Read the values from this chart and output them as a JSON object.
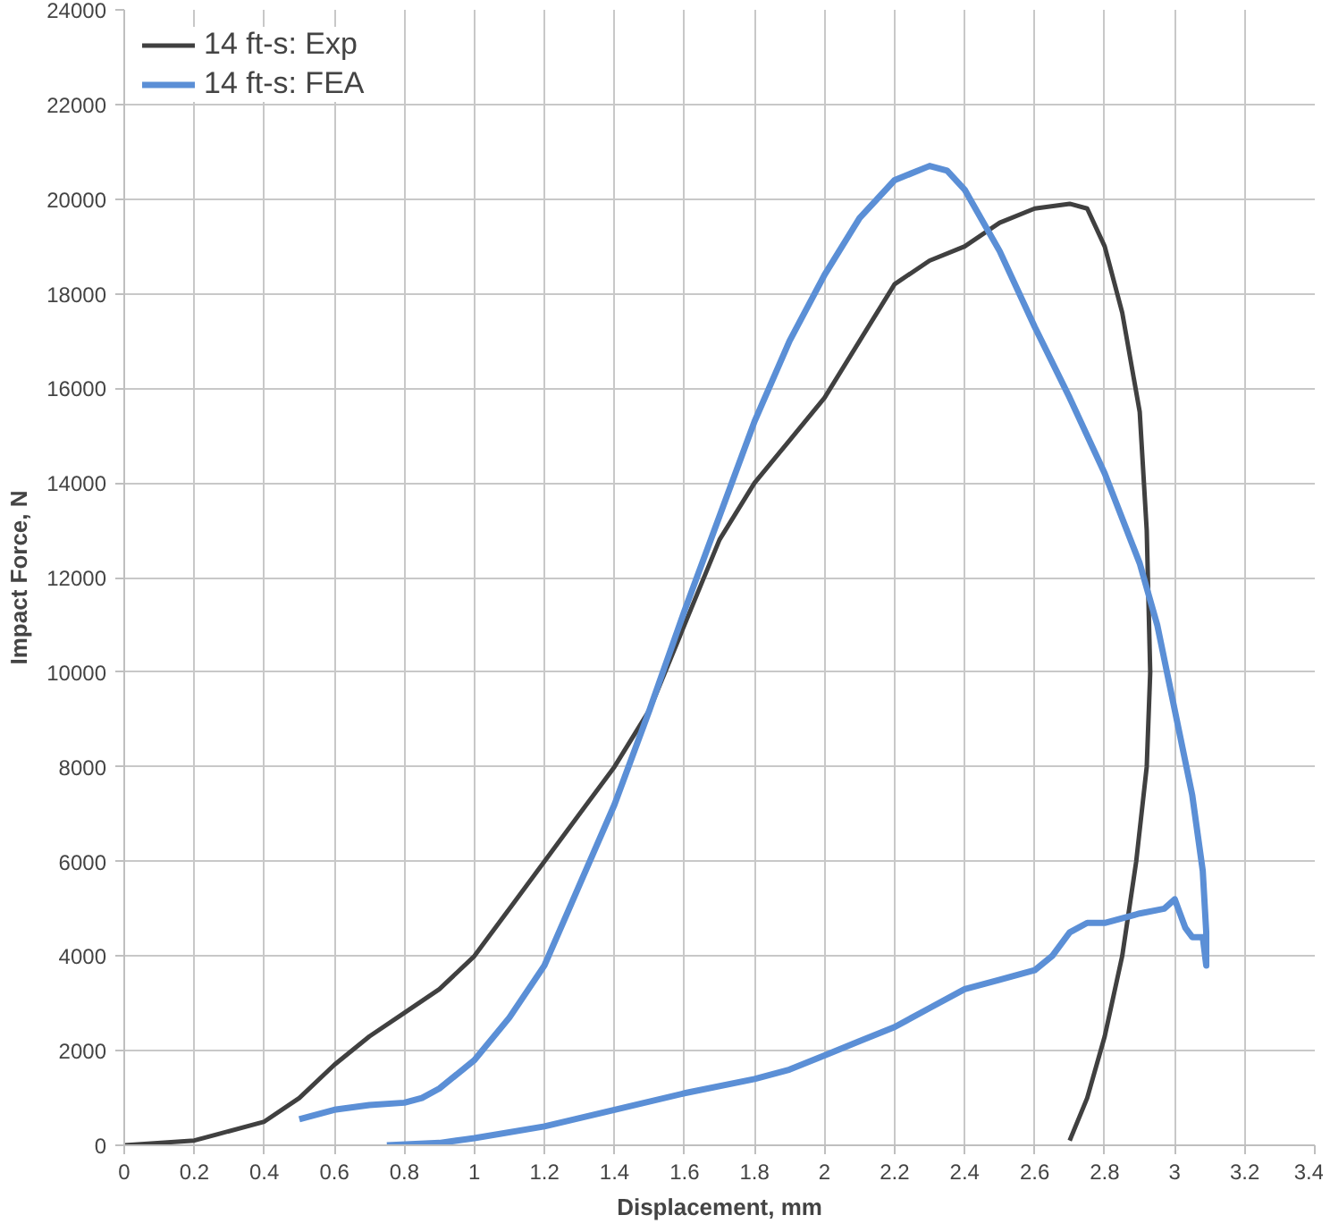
{
  "chart_data": {
    "type": "line",
    "xlabel": "Displacement, mm",
    "ylabel": "Impact Force, N",
    "xlim": [
      0,
      3.4
    ],
    "xticks": [
      0,
      0.2,
      0.4,
      0.6,
      0.8,
      1,
      1.2,
      1.4,
      1.6,
      1.8,
      2,
      2.2,
      2.4,
      2.6,
      2.8,
      3,
      3.2,
      3.4
    ],
    "ylim": [
      0,
      24000
    ],
    "yticks": [
      0,
      2000,
      4000,
      6000,
      8000,
      10000,
      12000,
      14000,
      16000,
      18000,
      20000,
      22000,
      24000
    ],
    "grid": true,
    "legend": "top left",
    "marker": "none",
    "line_style": "solid",
    "series": [
      {
        "name": "14 ft-s: Exp",
        "color": "#404040",
        "x": [
          0,
          0.2,
          0.4,
          0.5,
          0.6,
          0.7,
          0.8,
          0.9,
          1.0,
          1.1,
          1.2,
          1.3,
          1.4,
          1.5,
          1.6,
          1.7,
          1.8,
          1.9,
          2.0,
          2.1,
          2.2,
          2.3,
          2.4,
          2.5,
          2.6,
          2.7,
          2.75,
          2.8,
          2.85,
          2.9,
          2.92,
          2.93,
          2.92,
          2.89,
          2.85,
          2.8,
          2.75,
          2.7
        ],
        "values": [
          0,
          100,
          500,
          1000,
          1700,
          2300,
          2800,
          3300,
          4000,
          5000,
          6000,
          7000,
          8000,
          9200,
          11000,
          12800,
          14000,
          14900,
          15800,
          17000,
          18200,
          18700,
          19000,
          19500,
          19800,
          19900,
          19800,
          19000,
          17600,
          15500,
          13000,
          10000,
          8000,
          6000,
          4000,
          2300,
          1000,
          100
        ]
      },
      {
        "name": "14 ft-s: FEA",
        "color": "#5b8fd6",
        "x": [
          0.5,
          0.6,
          0.7,
          0.8,
          0.85,
          0.9,
          1.0,
          1.1,
          1.2,
          1.3,
          1.4,
          1.5,
          1.6,
          1.7,
          1.8,
          1.9,
          2.0,
          2.1,
          2.2,
          2.3,
          2.35,
          2.4,
          2.5,
          2.6,
          2.7,
          2.8,
          2.9,
          2.95,
          3.0,
          3.05,
          3.08,
          3.09,
          3.09,
          3.08,
          3.05,
          3.03,
          3.0,
          2.97,
          2.9,
          2.8,
          2.75,
          2.7,
          2.65,
          2.6,
          2.5,
          2.4,
          2.3,
          2.2,
          2.1,
          2.0,
          1.9,
          1.8,
          1.6,
          1.4,
          1.2,
          1.0,
          0.9,
          0.75
        ],
        "values": [
          550,
          750,
          850,
          900,
          1000,
          1200,
          1800,
          2700,
          3800,
          5500,
          7200,
          9200,
          11300,
          13300,
          15300,
          17000,
          18400,
          19600,
          20400,
          20700,
          20600,
          20200,
          18900,
          17300,
          15800,
          14200,
          12300,
          11000,
          9200,
          7400,
          5800,
          4500,
          3800,
          4400,
          4400,
          4600,
          5200,
          5000,
          4900,
          4700,
          4700,
          4500,
          4000,
          3700,
          3500,
          3300,
          2900,
          2500,
          2200,
          1900,
          1600,
          1400,
          1100,
          750,
          400,
          150,
          50,
          0
        ]
      }
    ]
  }
}
